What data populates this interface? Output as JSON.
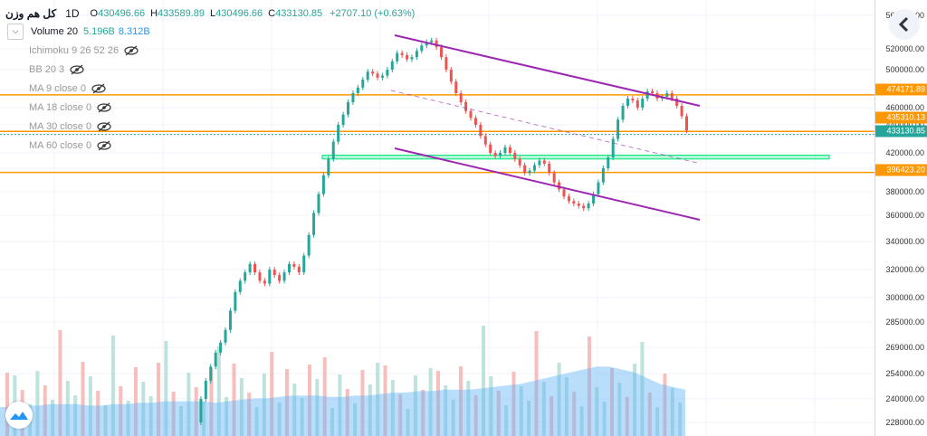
{
  "legend": {
    "symbol": "کل هم وزن",
    "timeframe": "1D",
    "ohlc": [
      {
        "label": "O",
        "value": "430496.66"
      },
      {
        "label": "H",
        "value": "433589.89"
      },
      {
        "label": "L",
        "value": "430496.66"
      },
      {
        "label": "C",
        "value": "433130.85"
      }
    ],
    "change": "+2707.10 (+0.63%)",
    "volume": {
      "name": "Volume 20",
      "v1": "5.196B",
      "v2": "8.312B"
    },
    "indicators": [
      "Ichimoku 9 26 52 26",
      "BB 20 3",
      "MA 9 close 0",
      "MA 18 close 0",
      "MA 30 close 0",
      "MA 60 close 0"
    ]
  },
  "price_labels": [
    {
      "value": "474171.89",
      "color": "#ff9800"
    },
    {
      "value": "435310.13",
      "color": "#ff9800"
    },
    {
      "value": "433130.85",
      "color": "#26a69a"
    },
    {
      "value": "396423.20",
      "color": "#ff9800"
    }
  ],
  "colors": {
    "up": "#26a69a",
    "down": "#ef5350",
    "hline": "#ff9800",
    "channel": "#9c27b0",
    "zone": "#00e676",
    "volume_ma": "#64b5f6"
  },
  "chart_data": {
    "type": "line",
    "interval": "1D",
    "axis_ticks": [
      "560000.00",
      "520000.00",
      "500000.00",
      "480000.00",
      "460000.00",
      "440000.00",
      "420000.00",
      "400000.00",
      "380000.00",
      "360000.00",
      "340000.00",
      "320000.00",
      "300000.00",
      "285000.00",
      "269000.00",
      "254000.00",
      "240000.00",
      "228000.00"
    ],
    "close_series": [
      228000,
      240000,
      250000,
      258000,
      266000,
      272000,
      280000,
      292000,
      304000,
      312000,
      318000,
      324000,
      318000,
      312000,
      310000,
      320000,
      316000,
      312000,
      318000,
      324000,
      322000,
      318000,
      330000,
      345000,
      362000,
      378000,
      394000,
      412000,
      428000,
      440000,
      452000,
      466000,
      476000,
      482000,
      490000,
      498000,
      496000,
      492000,
      494000,
      500000,
      508000,
      516000,
      514000,
      510000,
      512000,
      518000,
      524000,
      528000,
      530000,
      522000,
      512000,
      500000,
      488000,
      476000,
      466000,
      456000,
      448000,
      440000,
      432000,
      426000,
      420000,
      416000,
      420000,
      424000,
      420000,
      412000,
      404000,
      396000,
      398000,
      404000,
      410000,
      406000,
      396000,
      388000,
      382000,
      376000,
      372000,
      370000,
      368000,
      366000,
      370000,
      378000,
      388000,
      400000,
      414000,
      430000,
      446000,
      462000,
      470000,
      468000,
      460000,
      470000,
      478000,
      476000,
      470000,
      472000,
      476000,
      470000,
      462000,
      450000,
      436000
    ],
    "last_close": 433130.85,
    "horizontal_lines": [
      474171.89,
      435310.13,
      396423.2
    ],
    "support_zone": [
      412000,
      417000
    ],
    "volume_ma": [
      20,
      20,
      21,
      21,
      22,
      22,
      22,
      21,
      21,
      22,
      22,
      23,
      23,
      24,
      24,
      24,
      24,
      23,
      24,
      25,
      26,
      26,
      27,
      28,
      28,
      28,
      27,
      27,
      28,
      28,
      29,
      30,
      30,
      31,
      31,
      32,
      32,
      32,
      33,
      34,
      35,
      36,
      38,
      40,
      42,
      44,
      46,
      48,
      48,
      46,
      44,
      40,
      36,
      34,
      32
    ]
  }
}
